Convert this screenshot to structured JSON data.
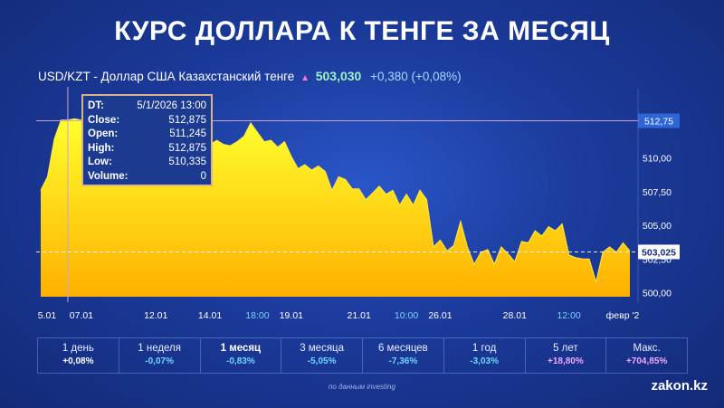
{
  "header": {
    "title": "КУРС ДОЛЛАРА К ТЕНГЕ ЗА МЕСЯЦ",
    "instrument": "USD/KZT - Доллар США Казахстанский тенге",
    "price": "503,030",
    "change": "+0,380 (+0,08%)",
    "arrow_icon": "triangle-up-icon"
  },
  "tooltip": {
    "rows": [
      {
        "key": "DT:",
        "value": "5/1/2026 13:00"
      },
      {
        "key": "Close:",
        "value": "512,875"
      },
      {
        "key": "Open:",
        "value": "511,245"
      },
      {
        "key": "High:",
        "value": "512,875"
      },
      {
        "key": "Low:",
        "value": "510,335"
      },
      {
        "key": "Volume:",
        "value": "0"
      }
    ]
  },
  "chart_data": {
    "type": "area",
    "series": [
      {
        "values": [
          507.6,
          508.6,
          511.4,
          512.8,
          512.8,
          512.9,
          512.8,
          510.8,
          510.0,
          511.0,
          510.4,
          509.5,
          510.2,
          509.0,
          510.8,
          511.0,
          509.8,
          510.6,
          508.8,
          509.4,
          509.3,
          510.3,
          510.1,
          510.6,
          510.5,
          511.0,
          511.3,
          511.0,
          510.9,
          511.2,
          511.6,
          512.6,
          511.9,
          511.2,
          511.3,
          510.8,
          511.2,
          510.1,
          509.2,
          509.5,
          509.1,
          509.4,
          509.0,
          507.6,
          508.6,
          508.4,
          507.7,
          507.7,
          506.9,
          507.4,
          507.9,
          507.3,
          507.6,
          506.5,
          507.3,
          506.5,
          507.6,
          506.9,
          503.4,
          503.9,
          503.1,
          503.5,
          505.3,
          503.4,
          502.1,
          503.0,
          503.2,
          502.1,
          503.4,
          502.9,
          502.3,
          503.8,
          503.7,
          504.6,
          504.2,
          504.9,
          504.6,
          505.1,
          502.8,
          502.6,
          502.5,
          502.5,
          500.8,
          503.0,
          503.4,
          503.0,
          503.7,
          503.1
        ]
      }
    ],
    "ylim": [
      499.7,
      515.0
    ],
    "y_ticks": [
      "500,00",
      "502,50",
      "505,00",
      "507,50",
      "510,00"
    ],
    "x_ticks": [
      {
        "label": "5.01",
        "i": 0,
        "highlight": false
      },
      {
        "label": "07.01",
        "i": 6,
        "highlight": false
      },
      {
        "label": "12.01",
        "i": 17,
        "highlight": false
      },
      {
        "label": "14.01",
        "i": 25,
        "highlight": false
      },
      {
        "label": "18:00",
        "i": 32,
        "highlight": true
      },
      {
        "label": "19.01",
        "i": 37,
        "highlight": false
      },
      {
        "label": "21.01",
        "i": 47,
        "highlight": false
      },
      {
        "label": "10:00",
        "i": 54,
        "highlight": true
      },
      {
        "label": "26.01",
        "i": 59,
        "highlight": false
      },
      {
        "label": "28.01",
        "i": 70,
        "highlight": false
      },
      {
        "label": "12:00",
        "i": 78,
        "highlight": true
      },
      {
        "label": "февр '2",
        "i": 86,
        "highlight": false
      }
    ],
    "crosshair": {
      "i": 4,
      "value": 512.75,
      "label": "512,75"
    },
    "last_price": {
      "value": 503.025,
      "label": "503,025"
    },
    "colors": {
      "top": "#ffff2e",
      "bottom": "#ffb000",
      "crosshair": "#c9a3d6",
      "line": "#6fb8ff"
    }
  },
  "periods": [
    {
      "label": "1 день",
      "value": "+0,08%",
      "color": "#ffffff",
      "active": false
    },
    {
      "label": "1 неделя",
      "value": "-0,07%",
      "color": "#6fd6ff",
      "active": false
    },
    {
      "label": "1 месяц",
      "value": "-0,83%",
      "color": "#6fd6ff",
      "active": true
    },
    {
      "label": "3 месяца",
      "value": "-5,05%",
      "color": "#6fd6ff",
      "active": false
    },
    {
      "label": "6 месяцев",
      "value": "-7,36%",
      "color": "#6fd6ff",
      "active": false
    },
    {
      "label": "1 год",
      "value": "-3,03%",
      "color": "#6fd6ff",
      "active": false
    },
    {
      "label": "5 лет",
      "value": "+18,80%",
      "color": "#f0a8ff",
      "active": false
    },
    {
      "label": "Макс.",
      "value": "+704,85%",
      "color": "#f0a8ff",
      "active": false
    }
  ],
  "footer": {
    "source": "по данным investing",
    "brand": "zakon.kz"
  }
}
